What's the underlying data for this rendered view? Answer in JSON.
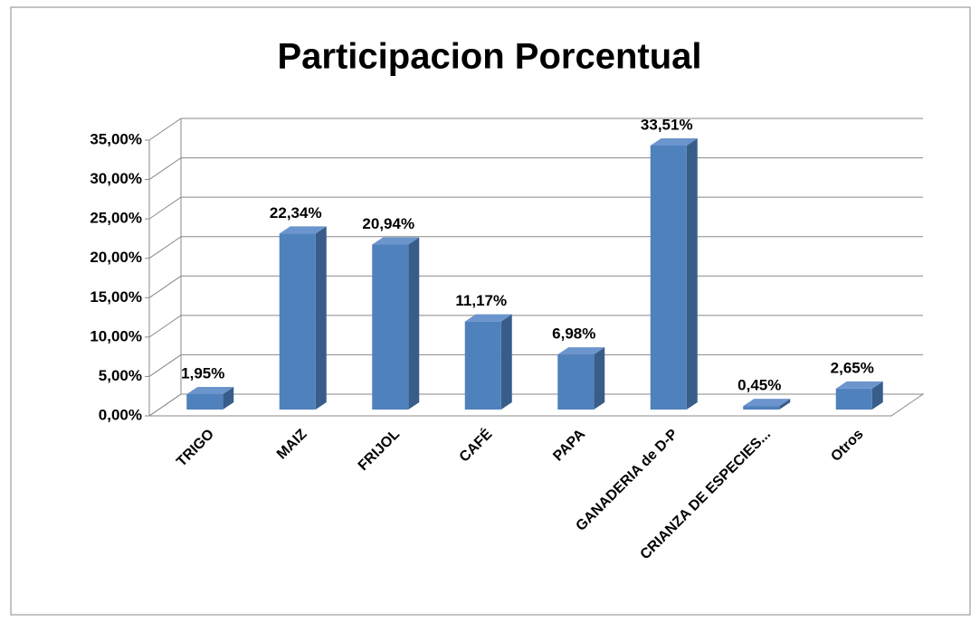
{
  "chart_data": {
    "type": "bar",
    "title": "Participacion Porcentual",
    "categories": [
      "TRIGO",
      "MAIZ",
      "FRIJOL",
      "CAFÉ",
      "PAPA",
      "GANADERIA de D-P",
      "CRIANZA DE ESPECIES...",
      "Otros"
    ],
    "values": [
      1.95,
      22.34,
      20.94,
      11.17,
      6.98,
      33.51,
      0.45,
      2.65
    ],
    "value_labels": [
      "1,95%",
      "22,34%",
      "20,94%",
      "11,17%",
      "6,98%",
      "33,51%",
      "0,45%",
      "2,65%"
    ],
    "color": "#4f81bd",
    "ylim": [
      0,
      35
    ],
    "yticks": [
      {
        "value": 0,
        "label": "0,00%"
      },
      {
        "value": 5,
        "label": "5,00%"
      },
      {
        "value": 10,
        "label": "10,00%"
      },
      {
        "value": 15,
        "label": "15,00%"
      },
      {
        "value": 20,
        "label": "20,00%"
      },
      {
        "value": 25,
        "label": "25,00%"
      },
      {
        "value": 30,
        "label": "30,00%"
      },
      {
        "value": 35,
        "label": "35,00%"
      }
    ],
    "grid": true
  }
}
